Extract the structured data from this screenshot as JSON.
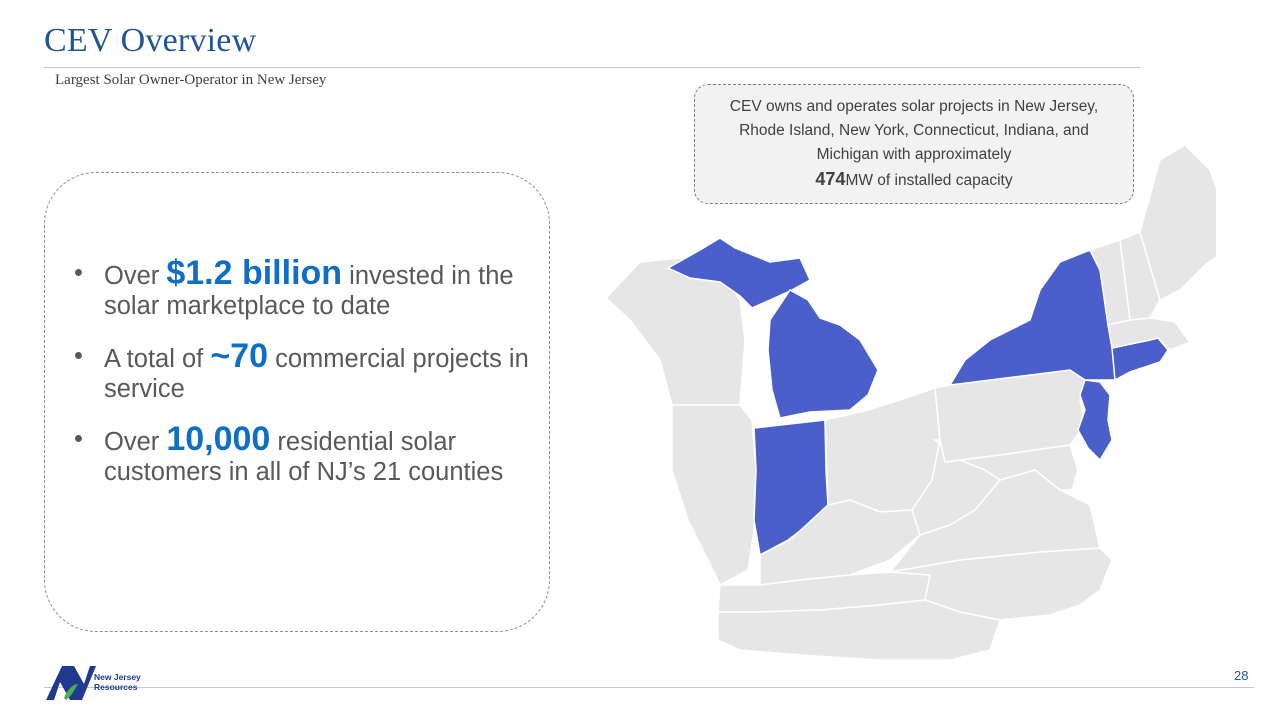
{
  "slide": {
    "title": "CEV Overview",
    "subtitle": "Largest Solar Owner-Operator in New Jersey",
    "page_number": "28"
  },
  "bullets": [
    {
      "prefix": "Over ",
      "highlight": "$1.2 billion",
      "suffix": " invested in the solar marketplace to date"
    },
    {
      "prefix": "A total of ",
      "highlight": "~70",
      "suffix": " commercial projects in service"
    },
    {
      "prefix": "Over ",
      "highlight": "10,000",
      "suffix": " residential solar customers in all of NJ’s 21 counties"
    }
  ],
  "callout": {
    "text": "CEV owns and operates solar projects in New Jersey, Rhode Island, New York, Connecticut, Indiana, and Michigan with approximately",
    "capacity_value": "474",
    "capacity_suffix": "MW of installed capacity"
  },
  "logo": {
    "line1": "New Jersey",
    "line2": "Resources"
  },
  "colors": {
    "title": "#1f5597",
    "highlight": "#0f6fc6",
    "state_highlight": "#4b5fcb",
    "state_base": "#e6e6e6"
  }
}
